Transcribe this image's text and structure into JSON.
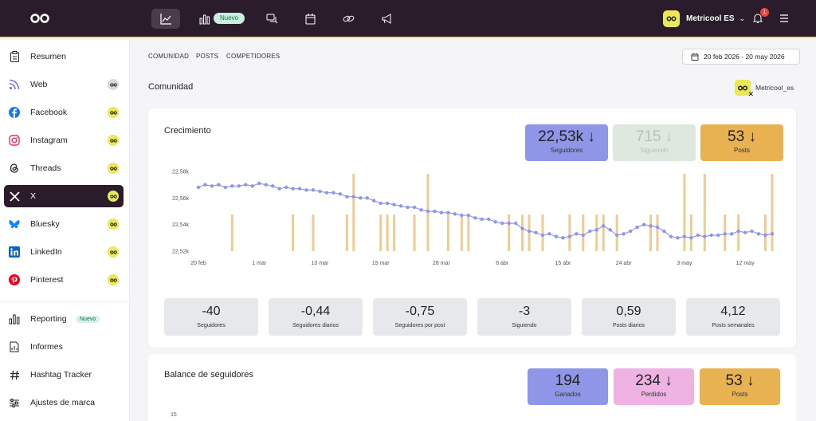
{
  "topbar": {
    "nav_new_badge": "Nuevo",
    "account_name": "Metricool ES",
    "notifications_count": "1"
  },
  "sidebar": {
    "items": [
      {
        "label": "Resumen",
        "icon": "clipboard-icon"
      },
      {
        "label": "Web",
        "icon": "rss-icon"
      },
      {
        "label": "Facebook",
        "icon": "facebook-icon"
      },
      {
        "label": "Instagram",
        "icon": "instagram-icon"
      },
      {
        "label": "Threads",
        "icon": "threads-icon"
      },
      {
        "label": "X",
        "icon": "x-icon"
      },
      {
        "label": "Bluesky",
        "icon": "bluesky-icon"
      },
      {
        "label": "LinkedIn",
        "icon": "linkedin-icon"
      },
      {
        "label": "Pinterest",
        "icon": "pinterest-icon"
      }
    ],
    "tools": [
      {
        "label": "Reporting",
        "badge": "Nuevo",
        "icon": "bar-chart-icon"
      },
      {
        "label": "Informes",
        "icon": "document-icon"
      },
      {
        "label": "Hashtag Tracker",
        "icon": "hashtag-icon"
      },
      {
        "label": "Ajustes de marca",
        "icon": "sliders-icon"
      }
    ]
  },
  "subnav": {
    "tabs": [
      "COMUNIDAD",
      "POSTS",
      "COMPETIDORES"
    ]
  },
  "date_range": "20 feb 2026 - 20 may 2026",
  "section_title": "Comunidad",
  "profile_name": "Metricool_es",
  "growth": {
    "title": "Crecimiento",
    "kpis": [
      {
        "value": "22,53k ↓",
        "label": "Seguidores",
        "color": "#8f96e8"
      },
      {
        "value": "715 ↓",
        "label": "Siguiendo",
        "color": "#dde9df"
      },
      {
        "value": "53 ↓",
        "label": "Posts",
        "color": "#e8b152"
      }
    ],
    "stats": [
      {
        "value": "-40",
        "label": "Seguidores"
      },
      {
        "value": "-0,44",
        "label": "Seguidores diarios"
      },
      {
        "value": "-0,75",
        "label": "Seguidores por post"
      },
      {
        "value": "-3",
        "label": "Siguiendo"
      },
      {
        "value": "0,59",
        "label": "Posts diarios"
      },
      {
        "value": "4,12",
        "label": "Posts semanales"
      }
    ]
  },
  "balance": {
    "title": "Balance de seguidores",
    "kpis": [
      {
        "value": "194",
        "label": "Ganados",
        "color": "#8f96e8"
      },
      {
        "value": "234 ↓",
        "label": "Perdidos",
        "color": "#efb3e3"
      },
      {
        "value": "53 ↓",
        "label": "Posts",
        "color": "#e8b152"
      }
    ],
    "y_tick_top": "15"
  },
  "chart_data": {
    "type": "line",
    "y_tick_labels": [
      "22,58k",
      "22,56k",
      "22,54k",
      "22,52k"
    ],
    "y_ticks": [
      22580,
      22560,
      22540,
      22520
    ],
    "ylim": [
      22520,
      22580
    ],
    "x_tick_labels": [
      "20 feb",
      "1 mar",
      "10 mar",
      "19 mar",
      "28 mar",
      "6 abr",
      "15 abr",
      "24 abr",
      "3 may",
      "12 may"
    ],
    "series": [
      {
        "values": [
          22568,
          22570,
          22569,
          22570,
          22568,
          22569,
          22569,
          22570,
          22569,
          22571,
          22570,
          22569,
          22567,
          22568,
          22567,
          22567,
          22566,
          22566,
          22565,
          22564,
          22564,
          22563,
          22561,
          22561,
          22560,
          22560,
          22558,
          22556,
          22556,
          22555,
          22554,
          22553,
          22553,
          22551,
          22550,
          22550,
          22549,
          22549,
          22548,
          22547,
          22547,
          22545,
          22544,
          22544,
          22542,
          22541,
          22541,
          22541,
          22537,
          22535,
          22534,
          22532,
          22533,
          22531,
          22530,
          22531,
          22533,
          22532,
          22535,
          22536,
          22539,
          22536,
          22532,
          22533,
          22535,
          22538,
          22540,
          22539,
          22538,
          22535,
          22531,
          22530,
          22531,
          22530,
          22532,
          22531,
          22532,
          22532,
          22533,
          22533,
          22535,
          22534,
          22535,
          22533,
          22532,
          22533
        ]
      }
    ],
    "posts_bars": [
      {
        "i": 5,
        "v": 0.45
      },
      {
        "i": 14,
        "v": 0.45
      },
      {
        "i": 17,
        "v": 0.45
      },
      {
        "i": 22,
        "v": 0.45
      },
      {
        "i": 23,
        "v": 0.95
      },
      {
        "i": 27,
        "v": 0.45
      },
      {
        "i": 28,
        "v": 0.45
      },
      {
        "i": 29,
        "v": 0.45
      },
      {
        "i": 32,
        "v": 0.45
      },
      {
        "i": 34,
        "v": 0.95
      },
      {
        "i": 37,
        "v": 0.45
      },
      {
        "i": 39,
        "v": 0.45
      },
      {
        "i": 40,
        "v": 0.45
      },
      {
        "i": 46,
        "v": 0.45
      },
      {
        "i": 48,
        "v": 0.45
      },
      {
        "i": 49,
        "v": 0.45
      },
      {
        "i": 51,
        "v": 0.45
      },
      {
        "i": 55,
        "v": 0.45
      },
      {
        "i": 57,
        "v": 0.45
      },
      {
        "i": 59,
        "v": 0.45
      },
      {
        "i": 60,
        "v": 0.45
      },
      {
        "i": 62,
        "v": 0.45
      },
      {
        "i": 67,
        "v": 0.45
      },
      {
        "i": 68,
        "v": 0.45
      },
      {
        "i": 72,
        "v": 0.95
      },
      {
        "i": 73,
        "v": 0.45
      },
      {
        "i": 75,
        "v": 0.95
      },
      {
        "i": 78,
        "v": 0.45
      },
      {
        "i": 80,
        "v": 0.45
      },
      {
        "i": 84,
        "v": 0.45
      },
      {
        "i": 85,
        "v": 0.95
      }
    ],
    "colors": {
      "line": "#8f96e8",
      "posts": "#edcc94"
    }
  }
}
